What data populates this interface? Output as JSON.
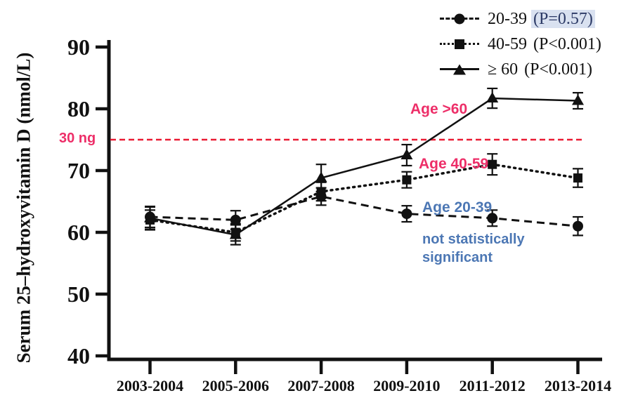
{
  "chart_data": {
    "type": "line",
    "categories": [
      "2003-2004",
      "2005-2006",
      "2007-2008",
      "2009-2010",
      "2011-2012",
      "2013-2014"
    ],
    "series": [
      {
        "name": "20-39",
        "p_label": "(P=0.57)",
        "p_highlighted": true,
        "marker": "circle",
        "line_style": "dashed",
        "values": [
          62.5,
          62.0,
          65.8,
          63.0,
          62.3,
          61.0
        ],
        "error_bars": [
          1.7,
          1.5,
          1.4,
          1.3,
          1.3,
          1.5
        ]
      },
      {
        "name": "40-59",
        "p_label": "(P<0.001)",
        "p_highlighted": false,
        "marker": "square",
        "line_style": "dotted",
        "values": [
          62.0,
          60.0,
          66.6,
          68.5,
          71.0,
          68.8
        ],
        "error_bars": [
          1.6,
          1.4,
          1.5,
          1.3,
          1.7,
          1.5
        ]
      },
      {
        "name": "≥ 60",
        "p_label": "(P<0.001)",
        "p_highlighted": false,
        "marker": "triangle",
        "line_style": "solid",
        "values": [
          62.3,
          59.6,
          68.8,
          72.5,
          81.7,
          81.3
        ],
        "error_bars": [
          1.8,
          1.6,
          2.2,
          1.7,
          1.6,
          1.3
        ]
      }
    ],
    "title": "",
    "xlabel": "",
    "ylabel": "Serum 25–hydroxyvitamin D (nmol/L)",
    "ylim": [
      40,
      90
    ],
    "yticks": [
      40,
      50,
      60,
      70,
      80,
      90
    ],
    "grid": false,
    "legend_position": "top-right",
    "series_color": "#111111",
    "legend_highlight_color": "#D9E1F0",
    "reference_line": {
      "value": 75,
      "label": "30 ng",
      "color": "#EA1B33",
      "style": "dashed"
    }
  },
  "annotations": {
    "age_over_60": {
      "text": "Age >60",
      "color": "#ED2E68"
    },
    "age_40_59": {
      "text": "Age 40-59",
      "color": "#ED2E68"
    },
    "age_20_39": {
      "text": "Age 20-39",
      "color": "#4C77B4"
    },
    "not_significant": {
      "text": "not statistically significant",
      "color": "#4C77B4"
    },
    "ref_line_label_color": "#ED2E68"
  }
}
